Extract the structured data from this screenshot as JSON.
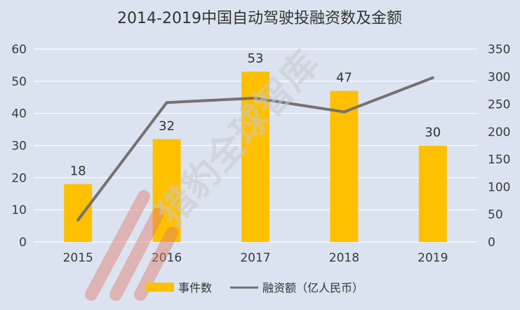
{
  "watermark": {
    "text": "猎豹全球智库",
    "logo_color": "#e07a6b"
  },
  "chart_data": {
    "type": "bar",
    "title": "2014-2019中国自动驾驶投融资数及金额",
    "categories": [
      "2015",
      "2016",
      "2017",
      "2018",
      "2019"
    ],
    "series": [
      {
        "name": "事件数",
        "type": "bar",
        "axis": "left",
        "color": "#ffc000",
        "values": [
          18,
          32,
          53,
          47,
          30
        ],
        "labels": [
          "18",
          "32",
          "53",
          "47",
          "30"
        ]
      },
      {
        "name": "融资额（亿人民币）",
        "type": "line",
        "axis": "right",
        "color": "#767171",
        "values": [
          40,
          253,
          261,
          236,
          298
        ]
      }
    ],
    "y_left": {
      "min": 0,
      "max": 60,
      "ticks": [
        "0",
        "10",
        "20",
        "30",
        "40",
        "50",
        "60"
      ]
    },
    "y_right": {
      "min": 0,
      "max": 350,
      "ticks": [
        "0",
        "50",
        "100",
        "150",
        "200",
        "250",
        "300",
        "350"
      ]
    },
    "grid": true,
    "legend_position": "bottom"
  }
}
